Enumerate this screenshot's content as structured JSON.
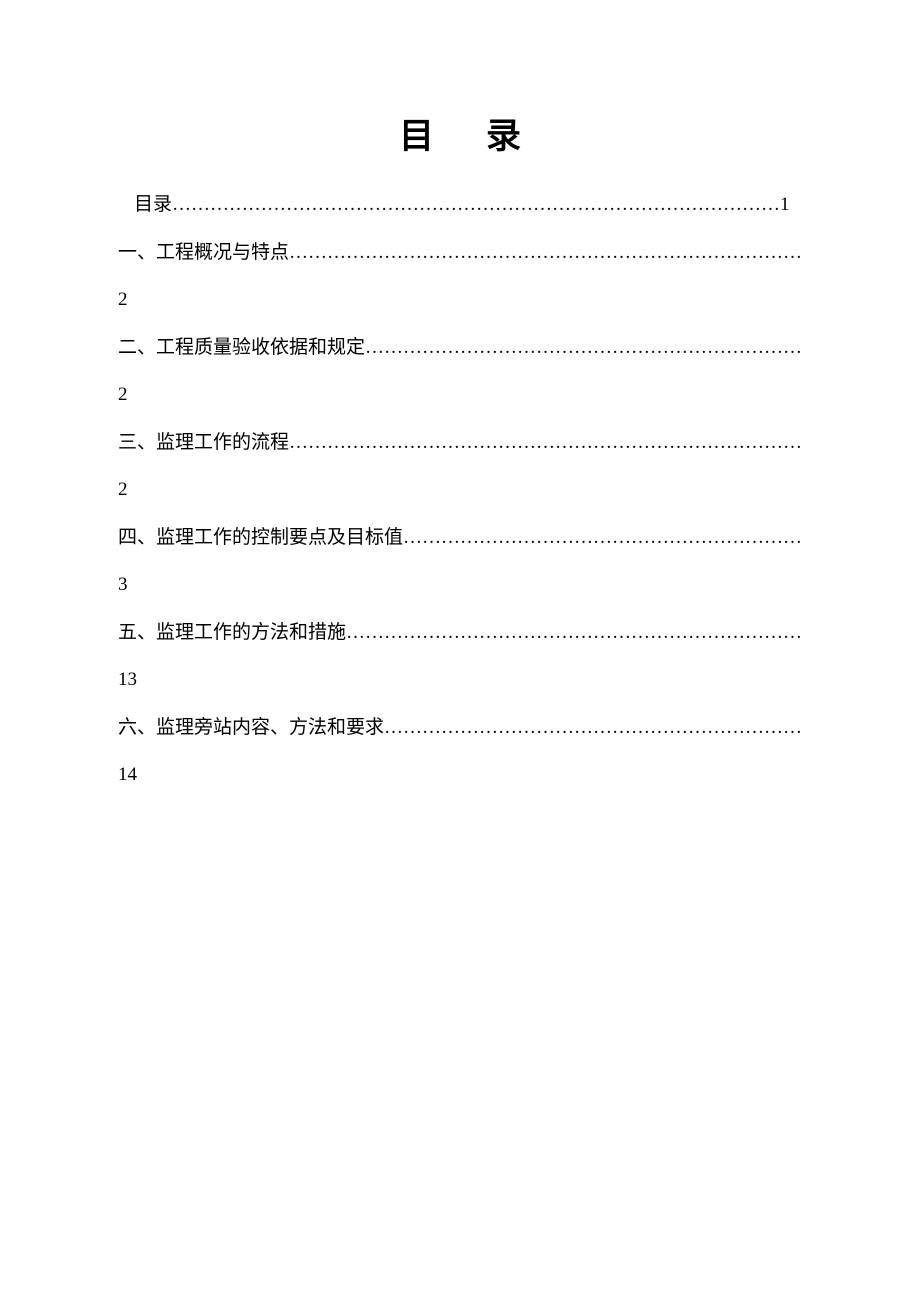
{
  "document": {
    "title": "目录",
    "background_color": "#ffffff",
    "text_color": "#000000",
    "title_fontsize": 35,
    "body_fontsize": 19,
    "entries": [
      {
        "text": "目录……………………………………………………………………………………1",
        "indent": true
      },
      {
        "text": "一、工程概况与特点………………………………………………………………………2",
        "indent": false
      },
      {
        "text": "二、工程质量验收依据和规定……………………………………………………………2",
        "indent": false
      },
      {
        "text": "三、监理工作的流程………………………………………………………………………2",
        "indent": false
      },
      {
        "text": "四、监理工作的控制要点及目标值………………………………………………………3",
        "indent": false
      },
      {
        "text": "五、监理工作的方法和措施………………………………………………………………13",
        "indent": false
      },
      {
        "text": "六、监理旁站内容、方法和要求…………………………………………………………14",
        "indent": false
      }
    ]
  }
}
